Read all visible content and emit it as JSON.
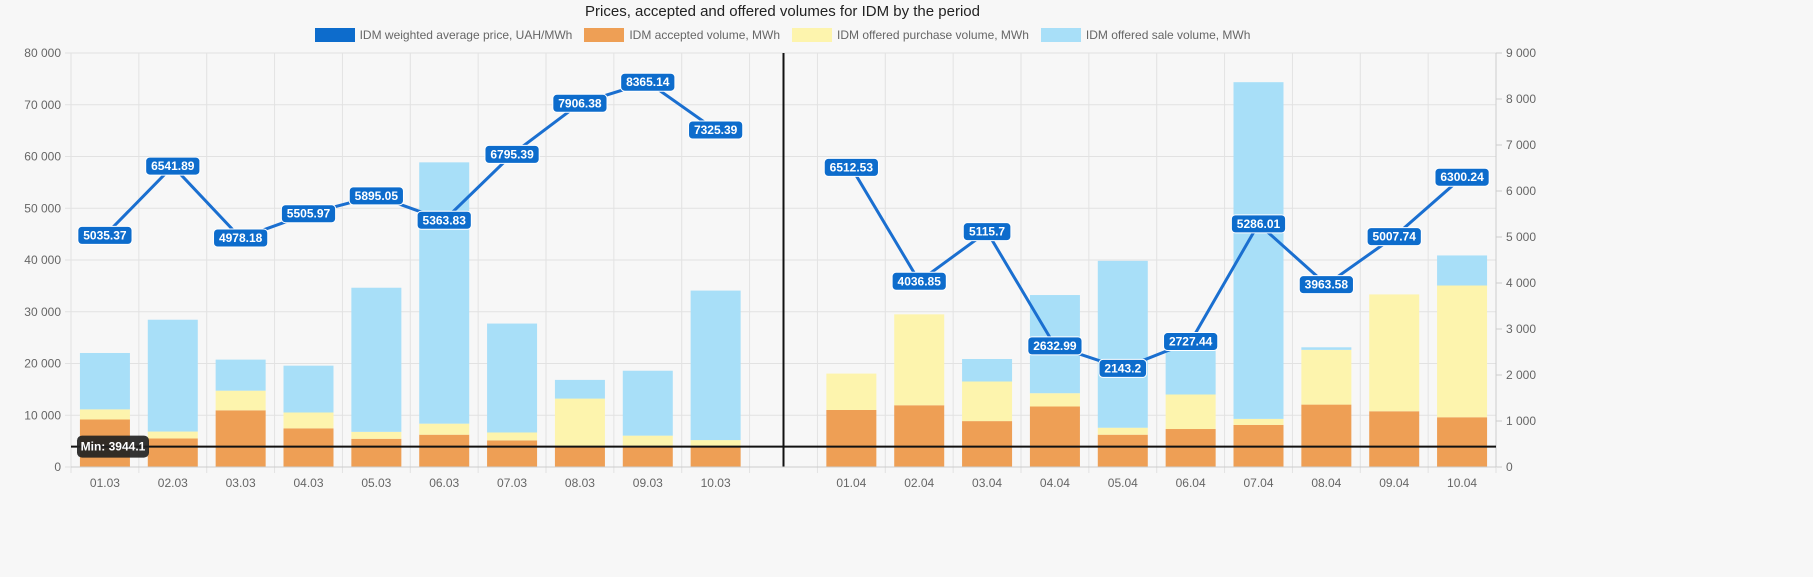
{
  "chart_data": {
    "type": "bar",
    "title": "Prices, accepted and offered volumes for IDM by the period",
    "categories": [
      "01.03",
      "02.03",
      "03.03",
      "04.03",
      "05.03",
      "06.03",
      "07.03",
      "08.03",
      "09.03",
      "10.03",
      "",
      "01.04",
      "02.04",
      "03.04",
      "04.04",
      "05.04",
      "06.04",
      "07.04",
      "08.04",
      "09.04",
      "10.04"
    ],
    "divider_category_index": 10,
    "left_axis": {
      "ylim": [
        0,
        80000
      ],
      "ticks": [
        "0",
        "10 000",
        "20 000",
        "30 000",
        "40 000",
        "50 000",
        "60 000",
        "70 000",
        "80 000"
      ]
    },
    "right_axis": {
      "ylim": [
        0,
        9000
      ],
      "ticks": [
        "0",
        "1 000",
        "2 000",
        "3 000",
        "4 000",
        "5 000",
        "6 000",
        "7 000",
        "8 000",
        "9 000"
      ]
    },
    "grid": true,
    "legend_position": "top",
    "series": [
      {
        "name": "IDM weighted average price, UAH/MWh",
        "type": "line",
        "axis": "right",
        "color": "#1a6fd0",
        "values": [
          5035.37,
          6541.89,
          4978.18,
          5505.97,
          5895.05,
          5363.83,
          6795.39,
          7906.38,
          8365.14,
          7325.39,
          null,
          6512.53,
          4036.85,
          5115.7,
          2632.99,
          2143.2,
          2727.44,
          5286.01,
          3963.58,
          5007.74,
          6300.24
        ],
        "labels": [
          "5035.37",
          "6541.89",
          "4978.18",
          "5505.97",
          "5895.05",
          "5363.83",
          "6795.39",
          "7906.38",
          "8365.14",
          "7325.39",
          "",
          "6512.53",
          "4036.85",
          "5115.7",
          "2632.99",
          "2143.2",
          "2727.44",
          "5286.01",
          "3963.58",
          "5007.74",
          "6300.24"
        ]
      },
      {
        "name": "IDM accepted volume, MWh",
        "type": "bar",
        "stack": true,
        "axis": "left",
        "color": "#ee9f55",
        "values": [
          9180,
          5510,
          10950,
          7470,
          5450,
          6240,
          5140,
          4000,
          4000,
          4000,
          null,
          11020,
          11930,
          8870,
          11690,
          6240,
          7340,
          8140,
          12060,
          10770,
          9610
        ]
      },
      {
        "name": "IDM offered purchase volume, MWh",
        "type": "bar",
        "stack": true,
        "axis": "left",
        "color": "#fdf4ad",
        "values": [
          1960,
          1340,
          3800,
          3060,
          1340,
          2140,
          1530,
          9220,
          2060,
          1200,
          null,
          7030,
          17570,
          7650,
          2570,
          1350,
          6670,
          1160,
          10580,
          22580,
          25460
        ]
      },
      {
        "name": "IDM offered sale volume, MWh",
        "type": "bar",
        "stack": true,
        "axis": "left",
        "color": "#a8dff8",
        "values": [
          10890,
          21610,
          6000,
          9050,
          27850,
          50490,
          21050,
          3610,
          12540,
          28890,
          null,
          0,
          0,
          4350,
          18970,
          32250,
          9550,
          65060,
          490,
          0,
          5810
        ]
      }
    ],
    "annotation": {
      "label": "Min: 3944.1",
      "value": 3944.1,
      "axis": "left"
    }
  }
}
